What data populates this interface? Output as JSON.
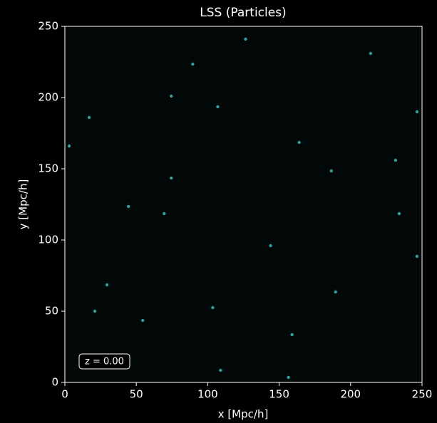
{
  "chart_data": {
    "type": "scatter",
    "title": "LSS (Particles)",
    "x_label": "x [Mpc/h]",
    "y_label": "y [Mpc/h]",
    "annotation": "z = 0.00",
    "color": "#3fc4c4",
    "x": [
      21,
      103.5,
      144,
      186.5,
      246.5,
      214,
      3,
      74.5,
      109,
      156.5,
      74.5,
      126.5,
      231.5,
      234,
      17,
      29.5,
      159,
      189.5,
      54.5,
      89.5,
      164,
      107,
      246.5,
      44.5,
      69.5
    ],
    "y": [
      50,
      52.5,
      96,
      148.5,
      190,
      231,
      166,
      201,
      8.5,
      3.5,
      143.5,
      241,
      156,
      118.5,
      186,
      68.5,
      33.5,
      63.5,
      43.5,
      223.5,
      168.5,
      193.5,
      88.5,
      123.5,
      118.5
    ],
    "xlim": [
      0,
      250
    ],
    "ylim": [
      0,
      250
    ],
    "xticks": [
      0,
      50,
      100,
      150,
      200,
      250
    ],
    "yticks": [
      0,
      50,
      100,
      150,
      200,
      250
    ]
  }
}
